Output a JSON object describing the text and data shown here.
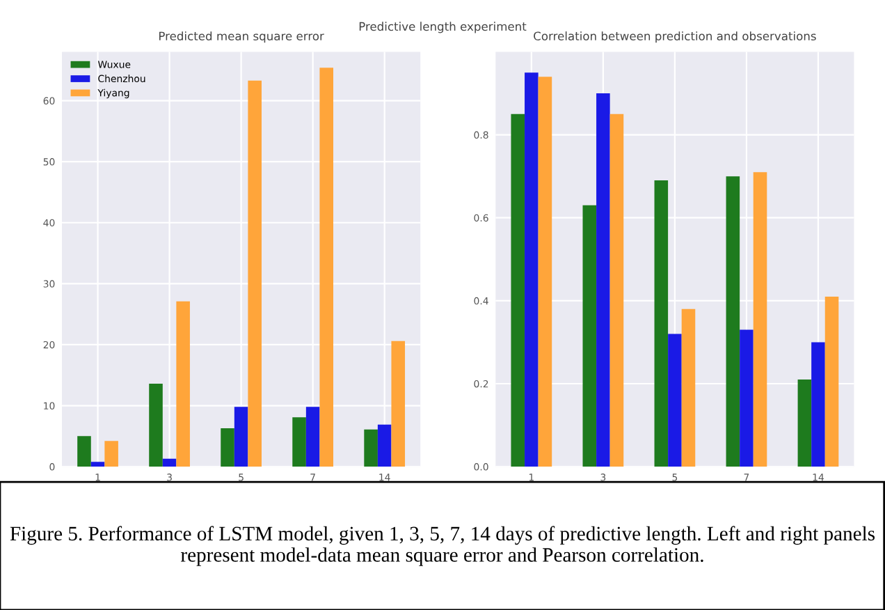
{
  "chart_data": [
    {
      "type": "bar",
      "title": "Predicted mean square error",
      "categories": [
        "1",
        "3",
        "5",
        "7",
        "14"
      ],
      "series": [
        {
          "name": "Wuxue",
          "color": "#1e7b1e",
          "values": [
            5.0,
            13.6,
            6.3,
            8.1,
            6.1
          ]
        },
        {
          "name": "Chenzhou",
          "color": "#1a1ae6",
          "values": [
            0.8,
            1.3,
            9.8,
            9.8,
            6.9
          ]
        },
        {
          "name": "Yiyang",
          "color": "#ffa53a",
          "values": [
            4.2,
            27.1,
            63.3,
            65.4,
            20.6
          ]
        }
      ],
      "ylim": [
        0,
        68
      ],
      "yticks": [
        0,
        10,
        20,
        30,
        40,
        50,
        60
      ],
      "grid": true,
      "legend": "top left",
      "annotations": [
        "Predictive length experiment",
        "Figure 5. Performance of LSTM model, given 1, 3, 5, 7, 14 days of predictive length. Left and right panels represent model-data mean square error and Pearson correlation."
      ]
    },
    {
      "type": "bar",
      "title": "Correlation between prediction and observations",
      "categories": [
        "1",
        "3",
        "5",
        "7",
        "14"
      ],
      "series": [
        {
          "color": "#1e7b1e",
          "values": [
            0.85,
            0.63,
            0.69,
            0.7,
            0.21
          ]
        },
        {
          "color": "#1a1ae6",
          "values": [
            0.95,
            0.9,
            0.32,
            0.33,
            0.3
          ]
        },
        {
          "color": "#ffa53a",
          "values": [
            0.94,
            0.85,
            0.38,
            0.71,
            0.41
          ]
        }
      ],
      "ylim": [
        0,
        1.0
      ],
      "yticks": [
        {
          "value": 0,
          "label": "0.0"
        },
        0.2,
        0.4,
        0.6,
        0.8
      ],
      "grid": true
    }
  ]
}
